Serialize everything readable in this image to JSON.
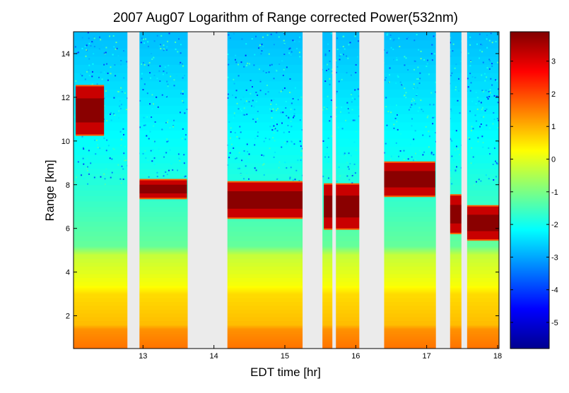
{
  "chart_data": {
    "type": "heatmap",
    "title": "2007 Aug07  Logarithm of Range corrected Power(532nm)",
    "xlabel": "EDT time [hr]",
    "ylabel": "Range [km]",
    "xlim": [
      12.02,
      18.02
    ],
    "ylim": [
      0.5,
      15.0
    ],
    "x_ticks": [
      13,
      14,
      15,
      16,
      17,
      18
    ],
    "y_ticks": [
      2,
      4,
      6,
      8,
      10,
      12,
      14
    ],
    "colorbar": {
      "colormap": "jet",
      "clim": [
        -5.8,
        3.9
      ],
      "ticks": [
        3,
        2,
        1,
        0,
        -1,
        -2,
        -3,
        -4,
        -5
      ]
    },
    "no_data_intervals": [
      [
        12.78,
        12.95
      ],
      [
        13.63,
        14.19
      ],
      [
        15.25,
        15.53
      ],
      [
        15.67,
        15.72
      ],
      [
        16.05,
        16.4
      ],
      [
        17.13,
        17.33
      ],
      [
        17.49,
        17.57
      ]
    ],
    "cloud_layers": [
      {
        "x": [
          12.05,
          12.45
        ],
        "bottom": 10.3,
        "top": 12.5
      },
      {
        "x": [
          12.95,
          13.62
        ],
        "bottom": 7.4,
        "top": 8.2
      },
      {
        "x": [
          14.19,
          15.25
        ],
        "bottom": 6.5,
        "top": 8.1
      },
      {
        "x": [
          15.55,
          16.05
        ],
        "bottom": 6.0,
        "top": 8.0
      },
      {
        "x": [
          16.4,
          17.12
        ],
        "bottom": 7.5,
        "top": 9.0
      },
      {
        "x": [
          17.33,
          17.49
        ],
        "bottom": 5.8,
        "top": 7.5
      },
      {
        "x": [
          17.57,
          18.02
        ],
        "bottom": 5.5,
        "top": 7.0
      }
    ],
    "background_profile": [
      {
        "range": 0.5,
        "value": 1.6
      },
      {
        "range": 1.4,
        "value": 1.3
      },
      {
        "range": 1.6,
        "value": 0.9
      },
      {
        "range": 3.0,
        "value": 0.6
      },
      {
        "range": 3.4,
        "value": 0.2
      },
      {
        "range": 4.8,
        "value": -0.3
      },
      {
        "range": 5.2,
        "value": -1.2
      },
      {
        "range": 7.0,
        "value": -1.6
      },
      {
        "range": 9.0,
        "value": -2.0
      },
      {
        "range": 12.0,
        "value": -2.4
      },
      {
        "range": 15.0,
        "value": -2.8
      }
    ],
    "grid": false,
    "colors": {
      "no_data": "#ebebeb",
      "frame": "#000000"
    }
  }
}
